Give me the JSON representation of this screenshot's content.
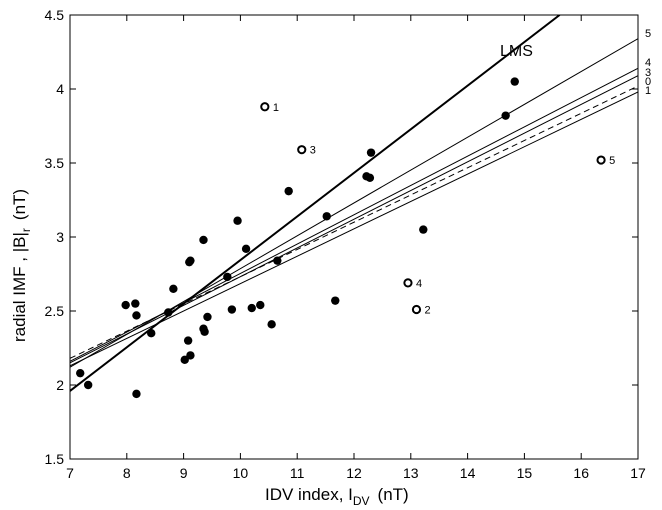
{
  "chart_data": {
    "type": "scatter",
    "title": "",
    "xlabel": {
      "main": "IDV index, I",
      "sub": "DV",
      "unit": "(nT)"
    },
    "ylabel": {
      "main": "radial IMF , |B|",
      "sub": "r",
      "unit": "(nT)"
    },
    "xlim": [
      7,
      17
    ],
    "ylim": [
      1.5,
      4.5
    ],
    "xticks": [
      "7",
      "8",
      "9",
      "10",
      "11",
      "12",
      "13",
      "14",
      "15",
      "16",
      "17"
    ],
    "yticks": [
      "1.5",
      "2",
      "2.5",
      "3",
      "3.5",
      "4",
      "4.5"
    ],
    "grid": false,
    "filled_points": [
      [
        7.18,
        2.08
      ],
      [
        7.32,
        2.0
      ],
      [
        7.98,
        2.54
      ],
      [
        8.15,
        2.55
      ],
      [
        8.17,
        2.47
      ],
      [
        8.17,
        1.94
      ],
      [
        8.43,
        2.35
      ],
      [
        8.73,
        2.49
      ],
      [
        8.82,
        2.65
      ],
      [
        9.02,
        2.17
      ],
      [
        9.08,
        2.3
      ],
      [
        9.1,
        2.83
      ],
      [
        9.12,
        2.84
      ],
      [
        9.12,
        2.2
      ],
      [
        9.35,
        2.98
      ],
      [
        9.35,
        2.38
      ],
      [
        9.37,
        2.36
      ],
      [
        9.42,
        2.46
      ],
      [
        9.77,
        2.73
      ],
      [
        9.85,
        2.51
      ],
      [
        9.95,
        3.11
      ],
      [
        10.1,
        2.92
      ],
      [
        10.2,
        2.52
      ],
      [
        10.35,
        2.54
      ],
      [
        10.55,
        2.41
      ],
      [
        10.65,
        2.84
      ],
      [
        10.85,
        3.31
      ],
      [
        11.52,
        3.14
      ],
      [
        11.67,
        2.57
      ],
      [
        12.22,
        3.41
      ],
      [
        12.28,
        3.4
      ],
      [
        12.3,
        3.57
      ],
      [
        13.22,
        3.05
      ],
      [
        14.67,
        3.82
      ],
      [
        14.83,
        4.05
      ]
    ],
    "open_points": [
      {
        "x": 10.43,
        "y": 3.88,
        "label": "1"
      },
      {
        "x": 13.1,
        "y": 2.51,
        "label": "2"
      },
      {
        "x": 11.08,
        "y": 3.59,
        "label": "3"
      },
      {
        "x": 12.95,
        "y": 2.69,
        "label": "4"
      },
      {
        "x": 16.35,
        "y": 3.52,
        "label": "5"
      }
    ],
    "fit_lines": [
      {
        "label": "LMS",
        "x0": 7,
        "y0": 1.96,
        "x1": 15.62,
        "y1": 4.5,
        "style": "bold"
      },
      {
        "label": "5",
        "x0": 7,
        "y0": 2.12,
        "x1": 17,
        "y1": 4.34,
        "style": "thin"
      },
      {
        "label": "4",
        "x0": 7,
        "y0": 2.16,
        "x1": 17,
        "y1": 4.14,
        "style": "thin"
      },
      {
        "label": "3",
        "x0": 7,
        "y0": 2.15,
        "x1": 17,
        "y1": 4.09,
        "style": "thin"
      },
      {
        "label": "0",
        "x0": 7,
        "y0": 2.18,
        "x1": 17,
        "y1": 4.02,
        "style": "dashed"
      },
      {
        "label": "1",
        "x0": 7,
        "y0": 2.13,
        "x1": 17,
        "y1": 3.98,
        "style": "thin"
      }
    ]
  }
}
